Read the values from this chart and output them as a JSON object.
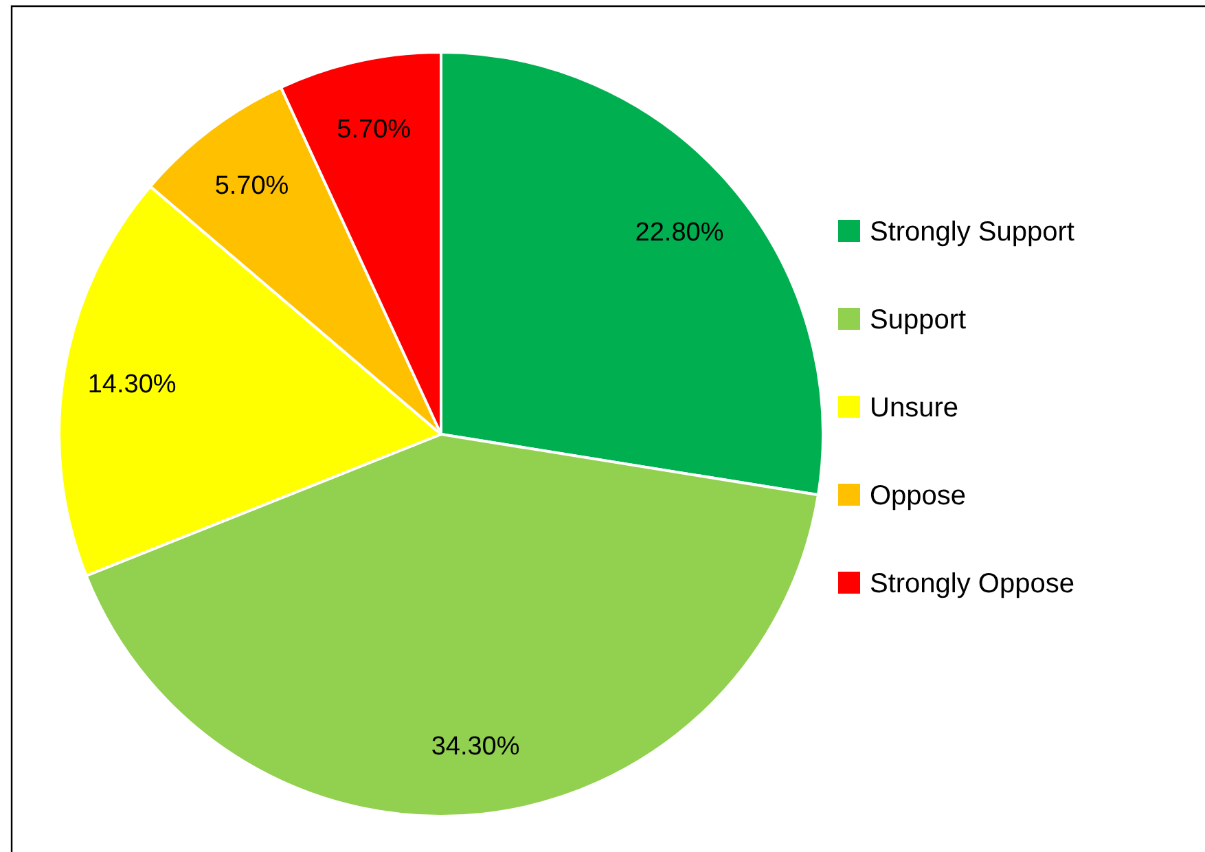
{
  "chart_data": {
    "type": "pie",
    "categories": [
      "Strongly Support",
      "Support",
      "Unsure",
      "Oppose",
      "Strongly Oppose"
    ],
    "values": [
      22.8,
      34.3,
      14.3,
      5.7,
      5.7
    ],
    "colors": [
      "#00b050",
      "#92d050",
      "#ffff00",
      "#ffc000",
      "#ff0000"
    ],
    "value_labels": [
      "22.80%",
      "34.30%",
      "14.30%",
      "5.70%",
      "5.70%"
    ],
    "legend": "right"
  }
}
